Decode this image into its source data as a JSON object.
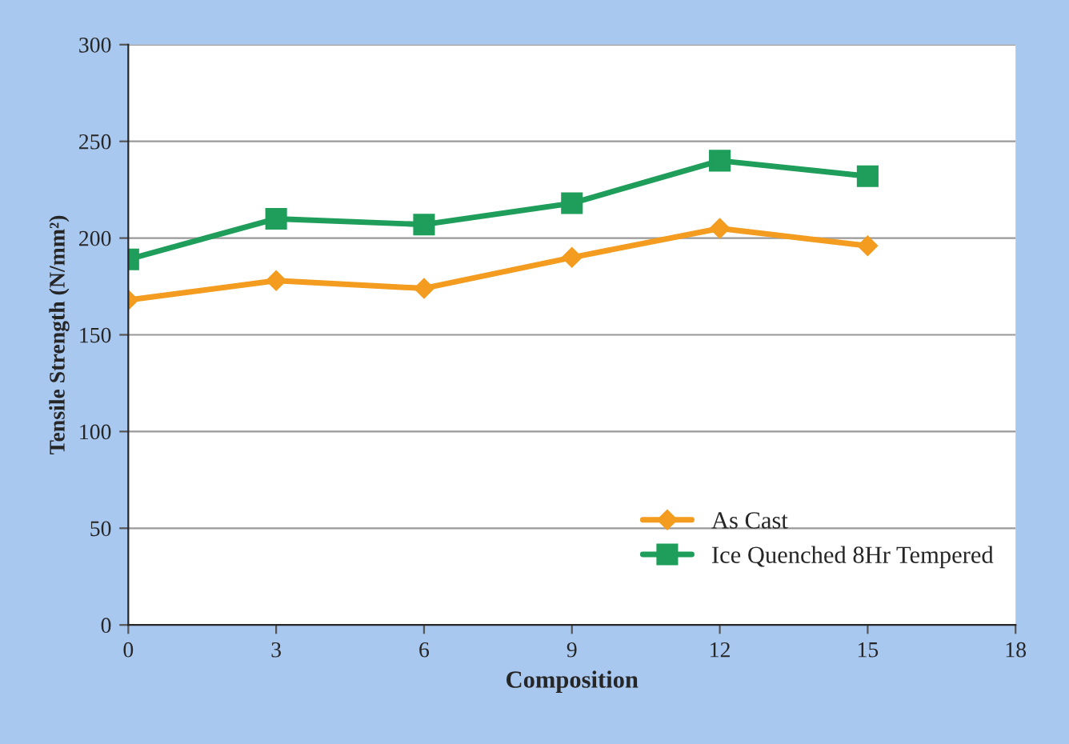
{
  "chart_data": {
    "type": "line",
    "xlabel": "Composition",
    "ylabel": "Tensile Strength (N/mm²)",
    "x": [
      0,
      3,
      6,
      9,
      12,
      15
    ],
    "series": [
      {
        "name": "As Cast",
        "color": "#f39c1f",
        "marker": "diamond",
        "values": [
          168,
          178,
          174,
          190,
          205,
          196
        ]
      },
      {
        "name": "Ice Quenched 8Hr Tempered",
        "color": "#1e9e5a",
        "marker": "square",
        "values": [
          189,
          210,
          207,
          218,
          240,
          232
        ]
      }
    ],
    "xlim": [
      0,
      18
    ],
    "xticks": [
      0,
      3,
      6,
      9,
      12,
      15,
      18
    ],
    "ylim": [
      0,
      300
    ],
    "yticks": [
      0,
      50,
      100,
      150,
      200,
      250,
      300
    ],
    "grid": "y",
    "legend": "bottom right",
    "line_style": "solid"
  }
}
